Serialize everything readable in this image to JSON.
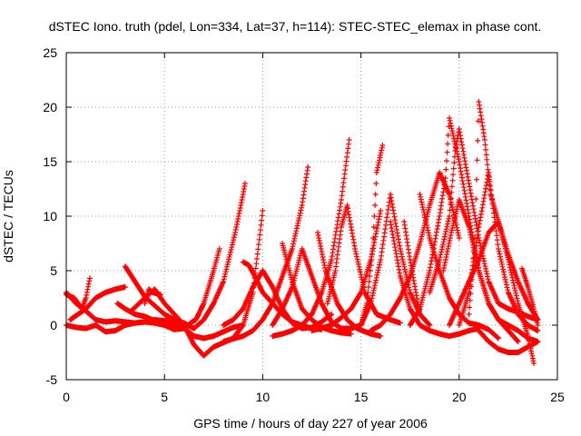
{
  "chart_data": {
    "type": "scatter",
    "title": "dSTEC Iono. truth (pdel, Lon=334, Lat=37, h=114): STEC-STEC_elemax in phase cont.",
    "xlabel": "GPS time / hours of day 227 of year 2006",
    "ylabel": "dSTEC  / TECUs",
    "xlim": [
      0,
      25
    ],
    "ylim": [
      -5,
      25
    ],
    "xticks": [
      0,
      5,
      10,
      15,
      20,
      25
    ],
    "yticks": [
      -5,
      0,
      5,
      10,
      15,
      20,
      25
    ],
    "grid": true,
    "marker": "plus",
    "color": "#ff0000",
    "series": [
      {
        "x": [
          0.0,
          0.5,
          1.0,
          1.5,
          2.0,
          2.5,
          3.0,
          3.5,
          4.0,
          4.5,
          5.0,
          5.5,
          6.0,
          6.5,
          7.0,
          7.5,
          8.0,
          8.6,
          9.0,
          9.1
        ],
        "y": [
          0.0,
          -0.2,
          -0.3,
          0.0,
          -0.6,
          -0.5,
          0.0,
          0.2,
          0.3,
          0.5,
          0.4,
          0.5,
          0.2,
          -0.3,
          0.5,
          2.0,
          4.0,
          8.5,
          12.0,
          13.0
        ]
      },
      {
        "x": [
          0.0,
          0.4,
          0.8,
          1.0,
          1.2
        ],
        "y": [
          2.8,
          2.5,
          1.5,
          2.5,
          4.3
        ]
      },
      {
        "x": [
          0.0,
          0.5,
          1.0,
          1.5,
          2.0,
          2.5,
          3.0,
          3.5,
          4.0,
          4.5,
          5.0,
          5.5,
          6.0,
          6.4,
          6.6,
          7.0,
          7.5,
          7.8
        ],
        "y": [
          3.0,
          2.0,
          1.3,
          0.5,
          0.3,
          0.4,
          0.3,
          0.2,
          0.3,
          0.2,
          0.0,
          -0.4,
          -0.3,
          0.3,
          0.5,
          2.0,
          5.0,
          7.0
        ]
      },
      {
        "x": [
          0.2,
          1.0,
          1.5,
          2.0,
          2.5,
          3.0
        ],
        "y": [
          0.5,
          1.5,
          2.5,
          3.0,
          3.3,
          3.5
        ]
      },
      {
        "x": [
          2.6,
          3.0,
          3.5,
          4.0,
          4.5,
          5.0,
          5.5,
          6.0
        ],
        "y": [
          2.0,
          1.5,
          1.0,
          0.8,
          0.4,
          0.2,
          0.0,
          -0.2
        ]
      },
      {
        "x": [
          3.0,
          3.5,
          4.0,
          4.5,
          5.0,
          5.5,
          6.0,
          6.5,
          7.0,
          7.5,
          8.0,
          8.5,
          9.0
        ],
        "y": [
          5.4,
          4.0,
          2.6,
          1.8,
          1.0,
          0.5,
          -0.3,
          -1.0,
          -1.2,
          -1.0,
          -0.6,
          -0.2,
          0.0
        ]
      },
      {
        "x": [
          3.3,
          4.0,
          4.5,
          5.0,
          5.5,
          6.0,
          6.5,
          7.0,
          7.5,
          8.0,
          8.5,
          9.0,
          9.5,
          10.0
        ],
        "y": [
          1.3,
          2.5,
          3.3,
          2.0,
          1.0,
          0.0,
          -1.8,
          -2.8,
          -2.0,
          -1.6,
          -1.2,
          0.0,
          3.0,
          10.5
        ]
      },
      {
        "x": [
          4.0,
          4.2,
          4.4,
          4.8
        ],
        "y": [
          2.0,
          3.3,
          3.0,
          2.8
        ]
      },
      {
        "x": [
          8.0,
          8.5,
          9.0,
          9.5,
          10.0,
          10.5,
          11.0,
          11.5,
          12.0,
          12.5,
          13.0,
          13.5
        ],
        "y": [
          0.0,
          0.5,
          1.5,
          3.5,
          5.0,
          3.5,
          1.5,
          0.2,
          -0.3,
          -0.2,
          0.3,
          1.0
        ]
      },
      {
        "x": [
          9.0,
          9.3,
          9.6,
          10.0,
          10.5,
          11.0,
          11.5,
          12.0,
          12.5,
          13.0
        ],
        "y": [
          5.8,
          5.5,
          4.5,
          3.0,
          2.0,
          1.0,
          0.3,
          0.0,
          -0.3,
          -0.4
        ]
      },
      {
        "x": [
          8.0,
          9.0,
          9.5,
          10.0,
          10.5,
          11.0,
          11.5,
          12.0,
          12.3
        ],
        "y": [
          -1.5,
          -1.0,
          -0.5,
          0.5,
          2.0,
          4.5,
          7.0,
          11.0,
          14.5
        ]
      },
      {
        "x": [
          10.5,
          11.0,
          11.5,
          12.0,
          12.5,
          13.0,
          13.5,
          14.0,
          14.5,
          15.0
        ],
        "y": [
          0.0,
          1.5,
          3.5,
          7.0,
          4.5,
          2.0,
          0.3,
          -0.3,
          -0.3,
          0.0
        ]
      },
      {
        "x": [
          11.0,
          11.5,
          12.0,
          12.5,
          13.0,
          13.5,
          14.0,
          14.5
        ],
        "y": [
          7.5,
          4.0,
          1.5,
          0.5,
          -0.2,
          -0.5,
          -0.7,
          -0.8
        ]
      },
      {
        "x": [
          10.5,
          11.0,
          11.5,
          12.0,
          12.5,
          13.0,
          13.5,
          14.0,
          14.4
        ],
        "y": [
          -1.0,
          -0.8,
          -0.5,
          0.0,
          1.0,
          3.0,
          6.0,
          11.5,
          17.0
        ]
      },
      {
        "x": [
          12.8,
          13.2,
          13.8,
          14.3,
          14.8,
          15.5,
          16.0
        ],
        "y": [
          8.5,
          5.0,
          2.0,
          0.5,
          -0.3,
          -0.8,
          -1.0
        ]
      },
      {
        "x": [
          13.3,
          13.7,
          14.0,
          14.3,
          14.7,
          15.2,
          15.8,
          16.5,
          17.0
        ],
        "y": [
          2.0,
          5.0,
          9.0,
          11.0,
          7.0,
          3.0,
          1.0,
          0.5,
          0.2
        ]
      },
      {
        "x": [
          12.5,
          13.5,
          14.0,
          14.5,
          15.0,
          15.5,
          16.0
        ],
        "y": [
          -0.5,
          0.0,
          0.7,
          1.5,
          3.0,
          6.0,
          10.5
        ]
      },
      {
        "x": [
          14.0,
          14.5,
          15.0,
          15.5,
          16.0,
          16.5,
          17.0,
          17.5,
          18.0,
          18.5
        ],
        "y": [
          -0.5,
          -0.3,
          0.0,
          2.0,
          6.0,
          12.0,
          7.0,
          3.0,
          1.0,
          0.0
        ]
      },
      {
        "x": [
          15.0,
          15.3,
          15.6,
          15.8,
          16.1
        ],
        "y": [
          0.0,
          2.0,
          7.0,
          14.0,
          16.5
        ]
      },
      {
        "x": [
          16.5,
          17.0,
          17.5,
          18.0,
          18.5,
          19.0,
          19.5,
          20.0,
          20.5,
          21.0
        ],
        "y": [
          9.5,
          4.5,
          1.5,
          0.0,
          -0.5,
          -0.8,
          -1.0,
          -0.8,
          -0.5,
          -0.3
        ]
      },
      {
        "x": [
          17.2,
          17.5,
          17.8,
          18.0
        ],
        "y": [
          9.5,
          6.0,
          3.0,
          1.0
        ]
      },
      {
        "x": [
          15.5,
          16.0,
          16.5,
          17.0,
          17.5,
          18.0,
          18.5,
          19.0,
          19.5,
          20.0
        ],
        "y": [
          -0.5,
          0.0,
          1.0,
          2.5,
          4.5,
          7.5,
          11.0,
          14.0,
          12.0,
          8.0
        ]
      },
      {
        "x": [
          18.0,
          18.5,
          19.0,
          19.5,
          20.0,
          20.5,
          21.0,
          21.5,
          22.0
        ],
        "y": [
          12.0,
          8.0,
          5.0,
          2.5,
          1.0,
          0.2,
          0.0,
          -0.4,
          -1.2
        ]
      },
      {
        "x": [
          17.5,
          18.0,
          18.5,
          19.0,
          19.3,
          19.5,
          20.0,
          20.5,
          21.0,
          21.5,
          22.0,
          22.5,
          23.0
        ],
        "y": [
          0.0,
          1.5,
          5.0,
          10.0,
          13.5,
          19.0,
          15.0,
          10.0,
          5.0,
          2.0,
          0.5,
          -0.5,
          -1.5
        ]
      },
      {
        "x": [
          18.5,
          19.0,
          19.5,
          19.8,
          20.0,
          20.5,
          21.0,
          21.5,
          22.0,
          22.5,
          23.0,
          23.5,
          24.0
        ],
        "y": [
          3.0,
          6.0,
          10.0,
          16.0,
          18.0,
          13.0,
          8.0,
          4.0,
          2.0,
          1.5,
          1.2,
          0.8,
          0.5
        ]
      },
      {
        "x": [
          19.2,
          19.6,
          20.0,
          20.5,
          21.0,
          21.5,
          22.0,
          22.5,
          23.0,
          23.5,
          24.0
        ],
        "y": [
          5.0,
          8.5,
          11.5,
          9.0,
          5.0,
          2.0,
          0.5,
          0.0,
          -0.5,
          -1.2,
          -1.5
        ]
      },
      {
        "x": [
          19.5,
          20.0,
          20.5,
          21.0,
          21.5,
          22.0,
          22.5,
          23.0,
          23.5,
          23.8
        ],
        "y": [
          0.0,
          2.0,
          4.0,
          6.0,
          8.5,
          9.5,
          6.0,
          2.0,
          -1.0,
          -3.5
        ]
      },
      {
        "x": [
          20.0,
          20.5,
          21.0,
          21.5,
          22.0,
          22.5,
          23.0,
          23.5,
          24.0
        ],
        "y": [
          0.0,
          3.0,
          9.0,
          14.0,
          7.0,
          3.0,
          1.0,
          0.0,
          -0.5
        ]
      },
      {
        "x": [
          20.5,
          20.8,
          21.0,
          21.3,
          21.6,
          22.0,
          22.5,
          23.0,
          23.5,
          24.0
        ],
        "y": [
          1.0,
          8.0,
          20.5,
          17.0,
          12.0,
          9.5,
          6.5,
          4.0,
          2.0,
          0.5
        ]
      },
      {
        "x": [
          21.0,
          21.5,
          22.0,
          22.5,
          23.0,
          23.5,
          24.0
        ],
        "y": [
          -0.5,
          -1.5,
          -2.2,
          -2.5,
          -2.5,
          -2.0,
          -1.5
        ]
      },
      {
        "x": [
          23.2,
          23.5,
          23.8,
          24.0
        ],
        "y": [
          5.2,
          3.5,
          1.5,
          0.0
        ]
      }
    ]
  }
}
